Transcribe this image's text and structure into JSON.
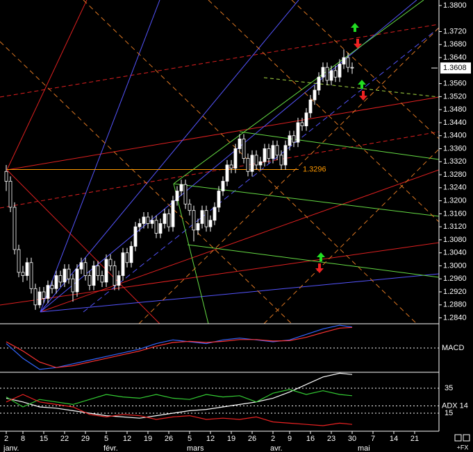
{
  "chart_data": [
    {
      "type": "candlestick",
      "xlim": [
        -1.5,
        103.5
      ],
      "ylim": [
        1.2822,
        1.3817
      ],
      "up_color": "#ffffff",
      "down_color": "#000000",
      "wick_color": "#ffffff",
      "open": [
        1.329,
        1.326,
        1.318,
        1.305,
        1.298,
        1.297,
        1.301,
        1.293,
        1.288,
        1.292,
        1.29,
        1.294,
        1.293,
        1.297,
        1.295,
        1.299,
        1.296,
        1.292,
        1.299,
        1.301,
        1.297,
        1.294,
        1.3,
        1.297,
        1.295,
        1.302,
        1.3,
        1.294,
        1.297,
        1.304,
        1.301,
        1.306,
        1.312,
        1.313,
        1.315,
        1.313,
        1.314,
        1.31,
        1.313,
        1.316,
        1.312,
        1.32,
        1.323,
        1.325,
        1.319,
        1.317,
        1.311,
        1.313,
        1.317,
        1.312,
        1.314,
        1.318,
        1.323,
        1.326,
        1.331,
        1.33,
        1.336,
        1.339,
        1.333,
        1.329,
        1.334,
        1.331,
        1.332,
        1.336,
        1.333,
        1.337,
        1.334,
        1.331,
        1.337,
        1.34,
        1.338,
        1.344,
        1.343,
        1.347,
        1.351,
        1.354,
        1.358,
        1.361,
        1.357,
        1.36,
        1.358,
        1.362,
        1.364,
        1.361
      ],
      "high": [
        1.331,
        1.3275,
        1.3195,
        1.3065,
        1.3,
        1.3025,
        1.3025,
        1.2945,
        1.2935,
        1.2935,
        1.2955,
        1.2955,
        1.2985,
        1.2985,
        1.3005,
        1.3005,
        1.2975,
        1.3005,
        1.3025,
        1.3025,
        1.2985,
        1.3015,
        1.3015,
        1.2985,
        1.3035,
        1.3035,
        1.3015,
        1.2985,
        1.3055,
        1.3055,
        1.3075,
        1.3135,
        1.3145,
        1.3165,
        1.3165,
        1.3155,
        1.3155,
        1.3145,
        1.3175,
        1.3175,
        1.3215,
        1.3245,
        1.3265,
        1.3265,
        1.3205,
        1.3185,
        1.3145,
        1.3185,
        1.3185,
        1.3155,
        1.3195,
        1.3245,
        1.3275,
        1.3325,
        1.3325,
        1.3375,
        1.3405,
        1.3405,
        1.3345,
        1.3355,
        1.3355,
        1.3335,
        1.3375,
        1.3375,
        1.3385,
        1.3385,
        1.3355,
        1.3385,
        1.3415,
        1.3415,
        1.3455,
        1.3455,
        1.3485,
        1.3525,
        1.3555,
        1.3595,
        1.3625,
        1.3625,
        1.3615,
        1.3615,
        1.3635,
        1.3665,
        1.3655,
        1.3625
      ],
      "low": [
        1.323,
        1.3165,
        1.3035,
        1.2965,
        1.295,
        1.2955,
        1.2915,
        1.2865,
        1.287,
        1.2885,
        1.2885,
        1.2915,
        1.2915,
        1.2935,
        1.2935,
        1.2945,
        1.289,
        1.2905,
        1.2975,
        1.2955,
        1.2925,
        1.2925,
        1.2955,
        1.2935,
        1.2935,
        1.2985,
        1.2925,
        1.2925,
        1.2955,
        1.2995,
        1.2995,
        1.3045,
        1.3105,
        1.3115,
        1.3115,
        1.3115,
        1.3085,
        1.3085,
        1.3115,
        1.3105,
        1.3105,
        1.3185,
        1.3215,
        1.3175,
        1.3155,
        1.3075,
        1.3095,
        1.3115,
        1.3105,
        1.3105,
        1.3125,
        1.3165,
        1.3215,
        1.3245,
        1.3285,
        1.3285,
        1.3345,
        1.3315,
        1.3275,
        1.3275,
        1.3295,
        1.3295,
        1.3305,
        1.3315,
        1.3315,
        1.3325,
        1.3295,
        1.3295,
        1.3355,
        1.3365,
        1.3365,
        1.3415,
        1.3415,
        1.3455,
        1.3495,
        1.3525,
        1.3565,
        1.3555,
        1.3555,
        1.3565,
        1.3565,
        1.3605,
        1.3595,
        1.359
      ],
      "close": [
        1.326,
        1.318,
        1.305,
        1.298,
        1.297,
        1.301,
        1.293,
        1.288,
        1.292,
        1.29,
        1.294,
        1.293,
        1.297,
        1.295,
        1.299,
        1.296,
        1.292,
        1.299,
        1.301,
        1.297,
        1.294,
        1.3,
        1.297,
        1.295,
        1.302,
        1.3,
        1.294,
        1.297,
        1.304,
        1.301,
        1.306,
        1.312,
        1.313,
        1.315,
        1.313,
        1.314,
        1.31,
        1.313,
        1.316,
        1.312,
        1.32,
        1.323,
        1.325,
        1.319,
        1.317,
        1.311,
        1.313,
        1.317,
        1.312,
        1.314,
        1.318,
        1.323,
        1.326,
        1.331,
        1.33,
        1.336,
        1.339,
        1.333,
        1.329,
        1.334,
        1.331,
        1.332,
        1.336,
        1.333,
        1.337,
        1.334,
        1.331,
        1.337,
        1.34,
        1.338,
        1.344,
        1.343,
        1.347,
        1.351,
        1.354,
        1.358,
        1.361,
        1.357,
        1.36,
        1.358,
        1.362,
        1.364,
        1.361,
        1.3608
      ],
      "yticks": [
        {
          "value": 1.38,
          "label": "1.3800"
        },
        {
          "value": 1.372,
          "label": "1.3720"
        },
        {
          "value": 1.368,
          "label": "1.3680"
        },
        {
          "value": 1.364,
          "label": "1.3640"
        },
        {
          "value": 1.356,
          "label": "1.3560"
        },
        {
          "value": 1.352,
          "label": "1.3520"
        },
        {
          "value": 1.348,
          "label": "1.3480"
        },
        {
          "value": 1.344,
          "label": "1.3440"
        },
        {
          "value": 1.34,
          "label": "1.3400"
        },
        {
          "value": 1.336,
          "label": "1.3360"
        },
        {
          "value": 1.332,
          "label": "1.3320"
        },
        {
          "value": 1.328,
          "label": "1.3280"
        },
        {
          "value": 1.324,
          "label": "1.3240"
        },
        {
          "value": 1.32,
          "label": "1.3200"
        },
        {
          "value": 1.316,
          "label": "1.3160"
        },
        {
          "value": 1.312,
          "label": "1.3120"
        },
        {
          "value": 1.308,
          "label": "1.3080"
        },
        {
          "value": 1.304,
          "label": "1.3040"
        },
        {
          "value": 1.3,
          "label": "1.3000"
        },
        {
          "value": 1.296,
          "label": "1.2960"
        },
        {
          "value": 1.292,
          "label": "1.2920"
        },
        {
          "value": 1.288,
          "label": "1.2880"
        },
        {
          "value": 1.284,
          "label": "1.2840"
        }
      ],
      "xticks": [
        {
          "value": 0,
          "label": "2"
        },
        {
          "value": 4,
          "label": "8"
        },
        {
          "value": 9,
          "label": "15"
        },
        {
          "value": 14,
          "label": "22"
        },
        {
          "value": 19,
          "label": "29"
        },
        {
          "value": 24,
          "label": "5"
        },
        {
          "value": 29,
          "label": "12"
        },
        {
          "value": 34,
          "label": "19"
        },
        {
          "value": 39,
          "label": "26"
        },
        {
          "value": 44,
          "label": "5"
        },
        {
          "value": 49,
          "label": "12"
        },
        {
          "value": 54,
          "label": "19"
        },
        {
          "value": 59,
          "label": "26"
        },
        {
          "value": 64,
          "label": "2"
        },
        {
          "value": 68,
          "label": "9"
        },
        {
          "value": 73,
          "label": "16"
        },
        {
          "value": 78,
          "label": "23"
        },
        {
          "value": 83,
          "label": "30"
        },
        {
          "value": 88,
          "label": "7"
        },
        {
          "value": 93,
          "label": "14"
        },
        {
          "value": 98,
          "label": "21"
        }
      ],
      "months": [
        {
          "value": 0,
          "label": "janv."
        },
        {
          "value": 24,
          "label": "févr."
        },
        {
          "value": 44,
          "label": "mars"
        },
        {
          "value": 64,
          "label": "avr."
        },
        {
          "value": 85,
          "label": "mai"
        }
      ],
      "last_price": {
        "value": 1.3608,
        "label": "1.3608"
      },
      "level": {
        "value": 1.3296,
        "label": "1.3296",
        "color": "#ff9900"
      }
    },
    {
      "type": "line",
      "title": "MACD",
      "xlim": [
        -1.5,
        103.5
      ],
      "ylim": [
        -0.0066,
        0.0062
      ],
      "x": [
        0,
        4,
        8,
        12,
        16,
        20,
        24,
        28,
        32,
        36,
        40,
        44,
        48,
        52,
        56,
        60,
        64,
        68,
        72,
        76,
        80,
        83
      ],
      "series": [
        {
          "color": "#3366ff",
          "values": [
            0.001,
            -0.003,
            -0.006,
            -0.0055,
            -0.0045,
            -0.0035,
            -0.0025,
            -0.0015,
            -0.0005,
            0.001,
            0.002,
            0.0015,
            0.001,
            0.002,
            0.0025,
            0.002,
            0.0015,
            0.002,
            0.0035,
            0.005,
            0.006,
            0.0055
          ]
        },
        {
          "color": "#ff3333",
          "values": [
            0.0015,
            -0.001,
            -0.004,
            -0.0055,
            -0.005,
            -0.004,
            -0.003,
            -0.002,
            -0.001,
            0.0003,
            0.0013,
            0.0016,
            0.0013,
            0.0016,
            0.0021,
            0.0021,
            0.0017,
            0.0018,
            0.0027,
            0.004,
            0.0052,
            0.0054
          ]
        }
      ]
    },
    {
      "type": "line",
      "title": "ADX 14",
      "xlim": [
        -1.5,
        103.5
      ],
      "ylim": [
        1.1,
        47.2
      ],
      "yticks": [
        35,
        15
      ],
      "x": [
        0,
        4,
        8,
        12,
        16,
        20,
        24,
        28,
        32,
        36,
        40,
        44,
        48,
        52,
        56,
        60,
        64,
        68,
        72,
        76,
        80,
        83
      ],
      "series": [
        {
          "color": "#ffffff",
          "values": [
            27,
            24,
            20,
            19,
            17,
            15,
            13,
            12,
            11,
            13,
            15,
            17,
            18,
            20,
            22,
            24,
            27,
            32,
            38,
            44,
            47,
            46
          ]
        },
        {
          "color": "#33cc33",
          "values": [
            28,
            20,
            26,
            24,
            22,
            26,
            30,
            28,
            27,
            30,
            27,
            26,
            30,
            28,
            29,
            24,
            31,
            34,
            30,
            33,
            30,
            29
          ]
        },
        {
          "color": "#ee2222",
          "values": [
            24,
            30,
            24,
            22,
            20,
            14,
            12,
            14,
            13,
            10,
            12,
            13,
            10,
            11,
            10,
            12,
            8,
            7,
            6,
            5,
            7,
            6
          ]
        }
      ]
    }
  ],
  "corner_label": "+FX"
}
